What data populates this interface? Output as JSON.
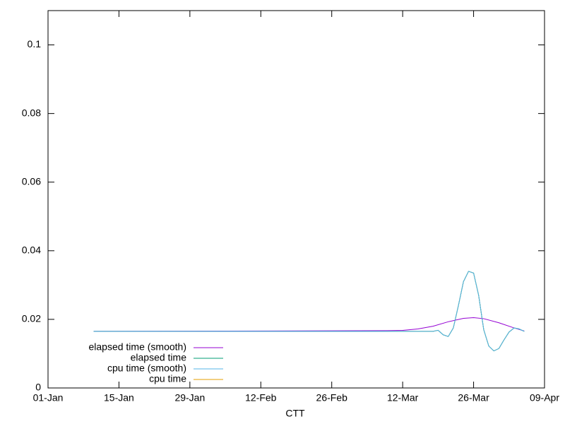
{
  "chart_data": {
    "type": "line",
    "x_label": "CTT",
    "xlim": [
      0,
      98
    ],
    "xticks": [
      {
        "value": 0,
        "label": "01-Jan"
      },
      {
        "value": 14,
        "label": "15-Jan"
      },
      {
        "value": 28,
        "label": "29-Jan"
      },
      {
        "value": 42,
        "label": "12-Feb"
      },
      {
        "value": 56,
        "label": "26-Feb"
      },
      {
        "value": 70,
        "label": "12-Mar"
      },
      {
        "value": 84,
        "label": "26-Mar"
      },
      {
        "value": 98,
        "label": "09-Apr"
      }
    ],
    "ylim": [
      0,
      0.11
    ],
    "yticks": [
      0,
      0.02,
      0.04,
      0.06,
      0.08,
      0.1
    ],
    "legend": "bottom-left",
    "series": [
      {
        "name": "cpu time",
        "color": "#e69f00",
        "x": [
          9,
          76,
          77,
          78,
          79,
          80,
          81,
          82,
          83,
          84,
          85,
          86,
          87,
          88,
          89,
          90,
          91,
          92,
          93,
          94
        ],
        "values": [
          0.0165,
          0.0165,
          0.0168,
          0.0155,
          0.015,
          0.0175,
          0.024,
          0.031,
          0.034,
          0.0335,
          0.027,
          0.017,
          0.0122,
          0.0108,
          0.0115,
          0.014,
          0.0163,
          0.0175,
          0.0172,
          0.0165
        ]
      },
      {
        "name": "elapsed time (smooth)",
        "color": "#9400d3",
        "x": [
          9,
          67,
          70,
          73,
          76,
          79,
          82,
          84,
          86,
          89,
          92,
          94
        ],
        "values": [
          0.0165,
          0.0167,
          0.0168,
          0.0172,
          0.018,
          0.0193,
          0.0203,
          0.0205,
          0.0202,
          0.019,
          0.0175,
          0.0166
        ]
      },
      {
        "name": "elapsed time",
        "color": "#009e73",
        "x": [
          9,
          76,
          77,
          78,
          79,
          80,
          81,
          82,
          83,
          84,
          85,
          86,
          87,
          88,
          89,
          90,
          91,
          92,
          93,
          94
        ],
        "values": [
          0.0165,
          0.0165,
          0.0168,
          0.0155,
          0.015,
          0.0175,
          0.024,
          0.031,
          0.034,
          0.0335,
          0.027,
          0.017,
          0.0122,
          0.0108,
          0.0115,
          0.014,
          0.0163,
          0.0175,
          0.0172,
          0.0165
        ]
      },
      {
        "name": "cpu time (smooth)",
        "color": "#56b4e9",
        "x": [
          9,
          76,
          77,
          78,
          79,
          80,
          81,
          82,
          83,
          84,
          85,
          86,
          87,
          88,
          89,
          90,
          91,
          92,
          93,
          94
        ],
        "values": [
          0.0165,
          0.0165,
          0.0168,
          0.0155,
          0.015,
          0.0175,
          0.024,
          0.031,
          0.034,
          0.0335,
          0.027,
          0.017,
          0.0122,
          0.0108,
          0.0115,
          0.014,
          0.0163,
          0.0175,
          0.0172,
          0.0165
        ]
      }
    ]
  }
}
